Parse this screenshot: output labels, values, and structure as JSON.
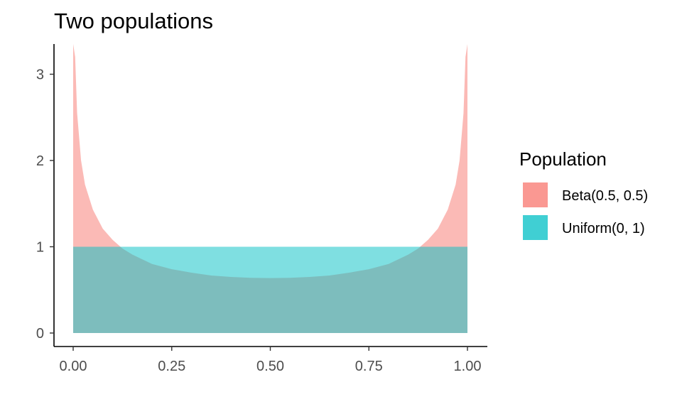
{
  "chart_data": {
    "type": "area",
    "title": "Two populations",
    "xlabel": "",
    "ylabel": "",
    "xlim": [
      0,
      1
    ],
    "ylim": [
      0,
      3.35
    ],
    "x_ticks": [
      0,
      0.25,
      0.5,
      0.75,
      1
    ],
    "x_tick_labels": [
      "0.00",
      "0.25",
      "0.50",
      "0.75",
      "1.00"
    ],
    "y_ticks": [
      0,
      1,
      2,
      3
    ],
    "y_tick_labels": [
      "0",
      "1",
      "2",
      "3"
    ],
    "grid": false,
    "legend": {
      "title": "Population",
      "position": "right"
    },
    "series": [
      {
        "name": "Beta(0.5, 0.5)",
        "color": "#F8766D",
        "opacity": 0.5,
        "x": [
          0.0,
          0.005,
          0.01,
          0.02,
          0.03,
          0.05,
          0.075,
          0.1,
          0.125,
          0.15,
          0.2,
          0.25,
          0.3,
          0.35,
          0.4,
          0.45,
          0.5,
          0.55,
          0.6,
          0.65,
          0.7,
          0.75,
          0.8,
          0.85,
          0.875,
          0.9,
          0.925,
          0.95,
          0.97,
          0.98,
          0.99,
          0.995,
          1.0
        ],
        "y": [
          3.35,
          3.2,
          2.55,
          2.0,
          1.72,
          1.43,
          1.21,
          1.08,
          0.98,
          0.91,
          0.8,
          0.74,
          0.7,
          0.667,
          0.65,
          0.64,
          0.637,
          0.64,
          0.65,
          0.667,
          0.7,
          0.74,
          0.8,
          0.91,
          0.98,
          1.08,
          1.21,
          1.43,
          1.72,
          2.0,
          2.55,
          3.2,
          3.35
        ]
      },
      {
        "name": "Uniform(0, 1)",
        "color": "#00BFC4",
        "opacity": 0.5,
        "x": [
          0,
          1
        ],
        "y": [
          1,
          1
        ]
      }
    ]
  }
}
